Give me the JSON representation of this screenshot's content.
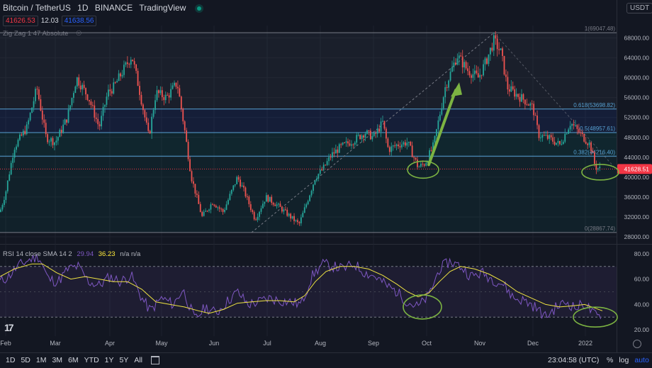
{
  "header": {
    "symbol": "Bitcoin / TetherUS",
    "interval": "1D",
    "exchange": "BINANCE",
    "platform": "TradingView",
    "currency": "USDT",
    "bid": "41626.53",
    "spread": "12.03",
    "ask": "41638.56"
  },
  "indicators": {
    "zigzag": "Zig Zag 1 47 Absolute",
    "rsi_label": "RSI 14 close SMA 14 2",
    "rsi_value": "29.94",
    "rsi_ma_value": "36.23",
    "rsi_na": "n/a n/a"
  },
  "footer": {
    "timeframes": [
      "1D",
      "5D",
      "1M",
      "3M",
      "6M",
      "YTD",
      "1Y",
      "5Y",
      "All"
    ],
    "clock": "23:04:58 (UTC)",
    "percent": "%",
    "log": "log",
    "auto": "auto"
  },
  "colors": {
    "up": "#26a69a",
    "down": "#ef5350",
    "fib": "#56a0d3",
    "rsi": "#7e57c2",
    "rsi_ma": "#f0e442",
    "annotation": "#7cb342",
    "price_tag": "#f23645"
  },
  "chart_data": {
    "type": "candlestick",
    "price_axis": {
      "ticks": [
        28000,
        32000,
        36000,
        40000,
        44000,
        48000,
        52000,
        56000,
        60000,
        64000,
        68000
      ],
      "labels": [
        "28000.00",
        "32000.00",
        "36000.00",
        "40000.00",
        "44000.00",
        "48000.00",
        "52000.00",
        "56000.00",
        "60000.00",
        "64000.00",
        "68000.00"
      ],
      "ylim": [
        27000,
        70500
      ]
    },
    "x_axis": {
      "labels": [
        "Feb",
        "Mar",
        "Apr",
        "May",
        "Jun",
        "Jul",
        "Aug",
        "Sep",
        "Oct",
        "Nov",
        "Dec",
        "2022"
      ]
    },
    "last_price": {
      "value": 41628.51,
      "label": "41628.51"
    },
    "fib_levels": [
      {
        "ratio": 1,
        "price": 69047.48,
        "label": "1(69047.48)"
      },
      {
        "ratio": 0.618,
        "price": 53698.82,
        "label": "0.618(53698.82)"
      },
      {
        "ratio": 0.5,
        "price": 48957.61,
        "label": "0.5(48957.61)"
      },
      {
        "ratio": 0.382,
        "price": 44216.4,
        "label": "0.382(44216.40)"
      },
      {
        "ratio": 0,
        "price": 28867.74,
        "label": "0(28867.74)"
      }
    ],
    "price_path": [
      [
        0,
        33000
      ],
      [
        8,
        37000
      ],
      [
        20,
        46000
      ],
      [
        38,
        50000
      ],
      [
        52,
        58000
      ],
      [
        65,
        48000
      ],
      [
        78,
        47000
      ],
      [
        95,
        52000
      ],
      [
        108,
        60000
      ],
      [
        125,
        56000
      ],
      [
        140,
        50000
      ],
      [
        152,
        57000
      ],
      [
        160,
        58000
      ],
      [
        172,
        61000
      ],
      [
        186,
        64500
      ],
      [
        196,
        58000
      ],
      [
        210,
        48000
      ],
      [
        220,
        57000
      ],
      [
        235,
        56000
      ],
      [
        250,
        59000
      ],
      [
        260,
        50000
      ],
      [
        270,
        40000
      ],
      [
        285,
        32000
      ],
      [
        300,
        35000
      ],
      [
        315,
        33000
      ],
      [
        335,
        40000
      ],
      [
        345,
        37000
      ],
      [
        360,
        31500
      ],
      [
        375,
        36000
      ],
      [
        390,
        34500
      ],
      [
        410,
        32000
      ],
      [
        422,
        30500
      ],
      [
        432,
        34500
      ],
      [
        445,
        40000
      ],
      [
        455,
        41500
      ],
      [
        468,
        44500
      ],
      [
        480,
        46000
      ],
      [
        500,
        47500
      ],
      [
        515,
        49000
      ],
      [
        527,
        48000
      ],
      [
        540,
        51000
      ],
      [
        548,
        45500
      ],
      [
        560,
        46500
      ],
      [
        575,
        47000
      ],
      [
        590,
        42000
      ],
      [
        600,
        42800
      ],
      [
        612,
        46500
      ],
      [
        628,
        58000
      ],
      [
        645,
        64500
      ],
      [
        660,
        61500
      ],
      [
        675,
        60000
      ],
      [
        685,
        63000
      ],
      [
        697,
        67500
      ],
      [
        707,
        65000
      ],
      [
        716,
        58000
      ],
      [
        730,
        56500
      ],
      [
        740,
        55500
      ],
      [
        752,
        54000
      ],
      [
        760,
        48500
      ],
      [
        775,
        47800
      ],
      [
        790,
        46500
      ],
      [
        805,
        51000
      ],
      [
        820,
        48500
      ],
      [
        833,
        46500
      ],
      [
        840,
        42000
      ],
      [
        848,
        41628
      ]
    ],
    "rsi_axis": {
      "ticks": [
        20,
        40,
        60,
        80
      ],
      "labels": [
        "20.00",
        "40.00",
        "60.00",
        "80.00"
      ],
      "ylim": [
        15,
        85
      ],
      "bands": [
        30,
        70
      ]
    },
    "rsi": [
      [
        0,
        58
      ],
      [
        12,
        62
      ],
      [
        25,
        70
      ],
      [
        40,
        75
      ],
      [
        55,
        78
      ],
      [
        68,
        60
      ],
      [
        82,
        58
      ],
      [
        96,
        68
      ],
      [
        110,
        70
      ],
      [
        125,
        58
      ],
      [
        140,
        55
      ],
      [
        155,
        62
      ],
      [
        170,
        58
      ],
      [
        185,
        63
      ],
      [
        200,
        45
      ],
      [
        212,
        35
      ],
      [
        228,
        45
      ],
      [
        245,
        40
      ],
      [
        258,
        52
      ],
      [
        275,
        28
      ],
      [
        290,
        38
      ],
      [
        305,
        33
      ],
      [
        320,
        42
      ],
      [
        335,
        50
      ],
      [
        350,
        40
      ],
      [
        365,
        42
      ],
      [
        380,
        45
      ],
      [
        395,
        43
      ],
      [
        410,
        42
      ],
      [
        425,
        40
      ],
      [
        440,
        62
      ],
      [
        455,
        72
      ],
      [
        470,
        70
      ],
      [
        485,
        68
      ],
      [
        500,
        72
      ],
      [
        515,
        65
      ],
      [
        530,
        62
      ],
      [
        545,
        55
      ],
      [
        560,
        50
      ],
      [
        575,
        42
      ],
      [
        590,
        38
      ],
      [
        605,
        47
      ],
      [
        620,
        68
      ],
      [
        635,
        74
      ],
      [
        650,
        70
      ],
      [
        665,
        62
      ],
      [
        680,
        65
      ],
      [
        695,
        60
      ],
      [
        710,
        56
      ],
      [
        725,
        45
      ],
      [
        740,
        43
      ],
      [
        755,
        38
      ],
      [
        770,
        30
      ],
      [
        785,
        38
      ],
      [
        800,
        42
      ],
      [
        812,
        37
      ],
      [
        825,
        41
      ],
      [
        838,
        32
      ],
      [
        850,
        29
      ]
    ],
    "rsi_ma": [
      [
        0,
        62
      ],
      [
        20,
        68
      ],
      [
        45,
        72
      ],
      [
        60,
        72
      ],
      [
        80,
        65
      ],
      [
        100,
        60
      ],
      [
        120,
        62
      ],
      [
        140,
        60
      ],
      [
        160,
        58
      ],
      [
        180,
        58
      ],
      [
        200,
        52
      ],
      [
        220,
        42
      ],
      [
        240,
        40
      ],
      [
        260,
        38
      ],
      [
        280,
        35
      ],
      [
        295,
        33
      ],
      [
        315,
        36
      ],
      [
        335,
        41
      ],
      [
        355,
        42
      ],
      [
        375,
        43
      ],
      [
        395,
        43
      ],
      [
        415,
        42
      ],
      [
        430,
        47
      ],
      [
        445,
        58
      ],
      [
        460,
        66
      ],
      [
        480,
        70
      ],
      [
        500,
        70
      ],
      [
        520,
        68
      ],
      [
        540,
        63
      ],
      [
        560,
        56
      ],
      [
        575,
        50
      ],
      [
        590,
        46
      ],
      [
        605,
        49
      ],
      [
        620,
        58
      ],
      [
        635,
        66
      ],
      [
        650,
        70
      ],
      [
        670,
        68
      ],
      [
        690,
        64
      ],
      [
        710,
        58
      ],
      [
        730,
        50
      ],
      [
        750,
        45
      ],
      [
        770,
        40
      ],
      [
        790,
        38
      ],
      [
        810,
        39
      ],
      [
        825,
        40
      ],
      [
        840,
        37
      ],
      [
        850,
        35
      ]
    ]
  }
}
